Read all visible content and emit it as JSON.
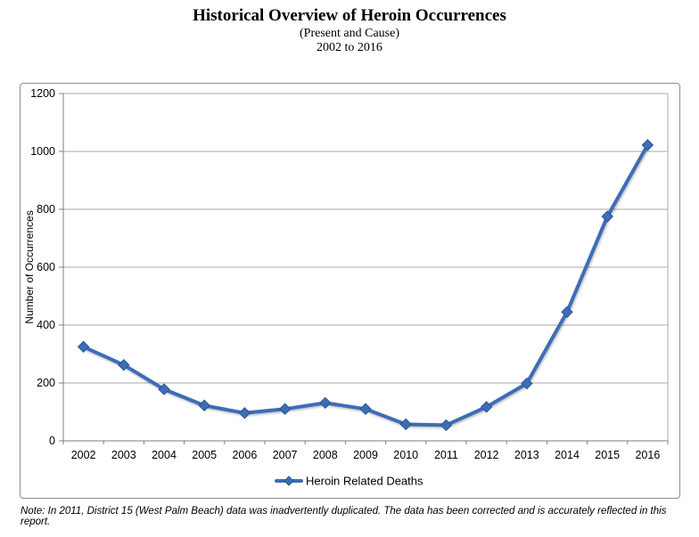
{
  "header": {
    "title": "Historical Overview of Heroin Occurrences",
    "subtitle": "(Present and Cause)",
    "date_range": "2002 to 2016"
  },
  "note": "Note: In 2011, District 15 (West Palm Beach) data was inadvertently duplicated. The data has been corrected and is accurately reflected in this report.",
  "legend": {
    "label": "Heroin Related Deaths"
  },
  "colors": {
    "series_line": "#3c6db6",
    "marker_fill": "#3c6db6",
    "marker_edge": "#2c5593",
    "gridline": "#a8a8a8",
    "axis_line": "#7f7f7f",
    "chart_border": "#8f8f8f",
    "text": "#000000"
  },
  "chart_data": {
    "type": "line",
    "categories": [
      "2002",
      "2003",
      "2004",
      "2005",
      "2006",
      "2007",
      "2008",
      "2009",
      "2010",
      "2011",
      "2012",
      "2013",
      "2014",
      "2015",
      "2016"
    ],
    "series": [
      {
        "name": "Heroin Related Deaths",
        "values": [
          325,
          262,
          178,
          122,
          96,
          110,
          131,
          110,
          57,
          54,
          117,
          198,
          445,
          775,
          1022
        ]
      }
    ],
    "title": "Historical Overview of Heroin Occurrences",
    "subtitle": "(Present and Cause) 2002 to 2016",
    "xlabel": "",
    "ylabel": "Number of Occurrences",
    "ylim": [
      0,
      1200
    ],
    "ytick_step": 200,
    "grid": true,
    "legend_position": "bottom",
    "marker": "diamond"
  }
}
